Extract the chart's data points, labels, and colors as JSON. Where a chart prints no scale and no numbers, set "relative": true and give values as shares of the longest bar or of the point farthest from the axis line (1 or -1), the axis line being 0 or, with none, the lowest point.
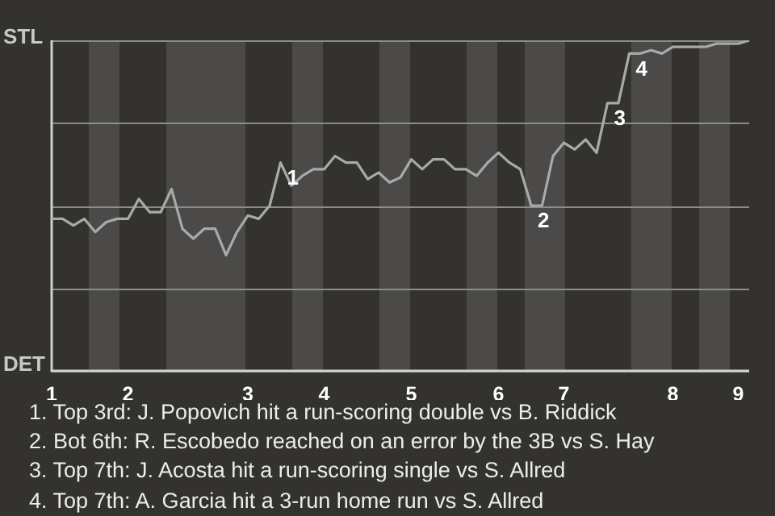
{
  "chart_data": {
    "type": "line",
    "color": "#a9a9a9",
    "marker": "none",
    "line_style": "solid",
    "grid": "y",
    "relative": true,
    "categories": [
      "1",
      null,
      null,
      null,
      null,
      null,
      null,
      "2",
      null,
      null,
      null,
      null,
      null,
      null,
      null,
      null,
      null,
      null,
      "3",
      null,
      null,
      null,
      null,
      null,
      null,
      "4",
      null,
      null,
      null,
      null,
      null,
      null,
      null,
      "5",
      null,
      null,
      null,
      null,
      null,
      null,
      null,
      "6",
      null,
      null,
      null,
      null,
      null,
      "7",
      null,
      null,
      null,
      null,
      null,
      null,
      null,
      null,
      null,
      "8",
      null,
      null,
      null,
      null,
      null,
      "9",
      null
    ],
    "values": [
      0.46,
      0.46,
      0.44,
      0.46,
      0.42,
      0.45,
      0.46,
      0.46,
      0.52,
      0.48,
      0.48,
      0.55,
      0.43,
      0.4,
      0.43,
      0.43,
      0.35,
      0.42,
      0.47,
      0.46,
      0.5,
      0.63,
      0.56,
      0.59,
      0.61,
      0.61,
      0.65,
      0.63,
      0.63,
      0.58,
      0.6,
      0.57,
      0.585,
      0.64,
      0.61,
      0.64,
      0.64,
      0.61,
      0.61,
      0.59,
      0.63,
      0.66,
      0.63,
      0.61,
      0.5,
      0.5,
      0.65,
      0.69,
      0.67,
      0.7,
      0.66,
      0.81,
      0.81,
      0.96,
      0.96,
      0.97,
      0.96,
      0.98,
      0.98,
      0.98,
      0.98,
      0.99,
      0.99,
      0.99,
      1
    ],
    "annotations": [
      "1",
      "2",
      "3",
      "4",
      "STL",
      "DET",
      "1. Top 3rd: J. Popovich hit a run-scoring double vs B. Riddick",
      "2. Bot 6th: R. Escobedo reached on an error by the 3B vs S. Hay",
      "3. Top 7th: J. Acosta hit a run-scoring single vs S. Allred",
      "4. Top 7th: A. Garcia hit a 3-run home run vs S. Allred"
    ]
  }
}
